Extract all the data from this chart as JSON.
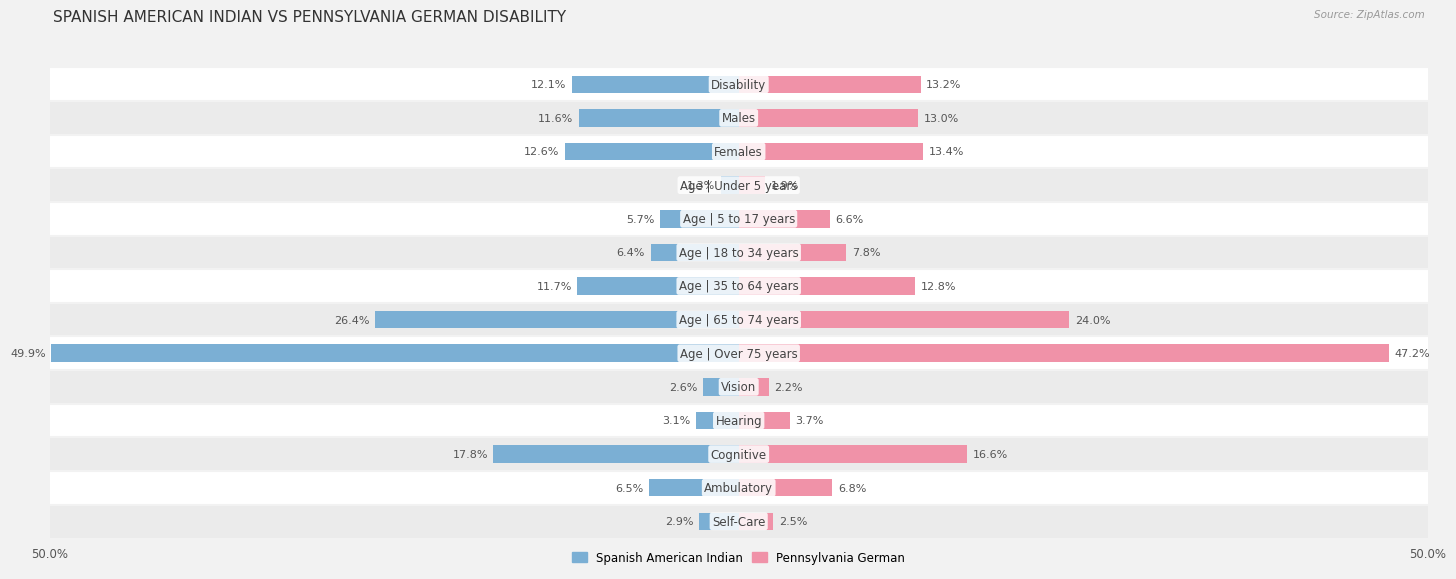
{
  "title": "SPANISH AMERICAN INDIAN VS PENNSYLVANIA GERMAN DISABILITY",
  "source": "Source: ZipAtlas.com",
  "categories": [
    "Disability",
    "Males",
    "Females",
    "Age | Under 5 years",
    "Age | 5 to 17 years",
    "Age | 18 to 34 years",
    "Age | 35 to 64 years",
    "Age | 65 to 74 years",
    "Age | Over 75 years",
    "Vision",
    "Hearing",
    "Cognitive",
    "Ambulatory",
    "Self-Care"
  ],
  "left_values": [
    12.1,
    11.6,
    12.6,
    1.3,
    5.7,
    6.4,
    11.7,
    26.4,
    49.9,
    2.6,
    3.1,
    17.8,
    6.5,
    2.9
  ],
  "right_values": [
    13.2,
    13.0,
    13.4,
    1.9,
    6.6,
    7.8,
    12.8,
    24.0,
    47.2,
    2.2,
    3.7,
    16.6,
    6.8,
    2.5
  ],
  "left_color": "#7bafd4",
  "right_color": "#f092a8",
  "left_label": "Spanish American Indian",
  "right_label": "Pennsylvania German",
  "axis_max": 50.0,
  "bg_color": "#f2f2f2",
  "row_color_even": "#ffffff",
  "row_color_odd": "#ebebeb",
  "title_fontsize": 11,
  "label_fontsize": 8.5,
  "value_fontsize": 8,
  "bar_height": 0.52
}
